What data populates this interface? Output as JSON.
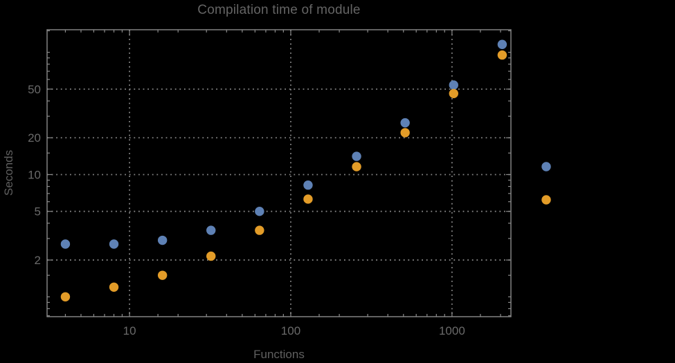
{
  "chart_data": {
    "type": "scatter",
    "title": "Compilation time of module",
    "xlabel": "Functions",
    "ylabel": "Seconds",
    "x_scale": "log",
    "y_scale": "log",
    "xlim": [
      3.08,
      2320
    ],
    "ylim": [
      0.688,
      153
    ],
    "x_ticks": {
      "values": [
        10,
        100,
        1000
      ],
      "labels": [
        "10",
        "100",
        "1000"
      ]
    },
    "y_ticks": {
      "values": [
        2,
        5,
        10,
        20,
        50
      ],
      "labels": [
        "2",
        "5",
        "10",
        "20",
        "50"
      ]
    },
    "minor_tick_multiples": [
      1,
      1.5,
      2,
      3,
      4,
      5,
      6,
      7,
      8,
      9
    ],
    "grid": "dotted-at-major-ticks",
    "legend_position": "outside-right",
    "legend_labels_visible": false,
    "x": [
      4,
      8,
      16,
      32,
      64,
      128,
      256,
      512,
      1024,
      2048
    ],
    "series": [
      {
        "name": "series-1-blue",
        "color": "#5e81b5",
        "values": [
          2.7,
          2.7,
          2.9,
          3.5,
          5.0,
          8.2,
          14.1,
          26.5,
          54,
          116
        ]
      },
      {
        "name": "series-2-orange",
        "color": "#e39c28",
        "values": [
          1.0,
          1.2,
          1.5,
          2.15,
          3.5,
          6.3,
          11.6,
          22,
          46,
          95
        ]
      }
    ],
    "colors": {
      "background": "#000000",
      "frame": "#8c8c8c",
      "grid": "#878787",
      "tick_label": "#6a6a6a",
      "axis_label": "#606060",
      "title": "#646464"
    }
  }
}
